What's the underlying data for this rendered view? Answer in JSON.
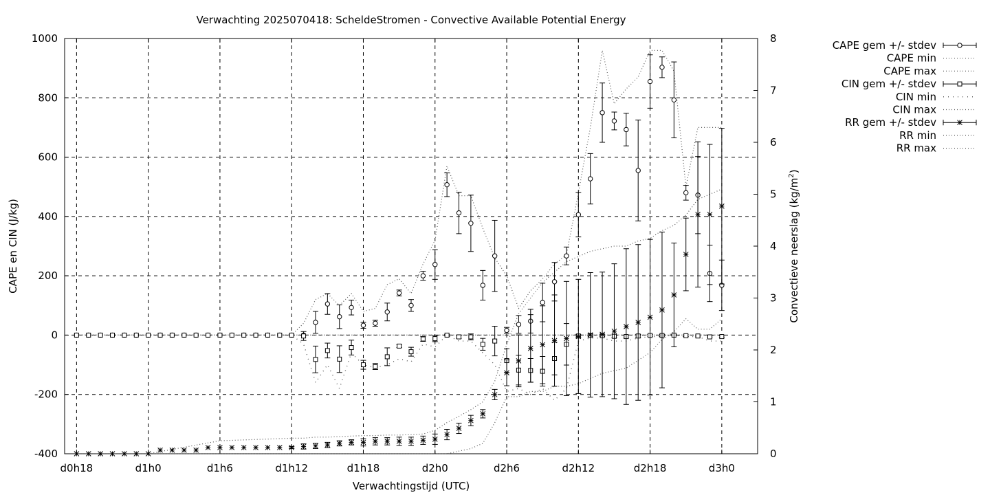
{
  "chart_data": {
    "type": "line",
    "title": "Verwachting 2025070418: ScheldeStromen - Convective Available Potential Energy",
    "xlabel": "Verwachtingstijd (UTC)",
    "ylabel": "CAPE en CIN (J/kg)",
    "y2label": "Convectieve neerslag (kg/m",
    "y2label_sup": "2",
    "y2label_end": ")",
    "x_hours_range": [
      -1,
      57
    ],
    "x_ticks": [
      {
        "hour": 0,
        "label": "d0h18"
      },
      {
        "hour": 6,
        "label": "d1h0"
      },
      {
        "hour": 12,
        "label": "d1h6"
      },
      {
        "hour": 18,
        "label": "d1h12"
      },
      {
        "hour": 24,
        "label": "d1h18"
      },
      {
        "hour": 30,
        "label": "d2h0"
      },
      {
        "hour": 36,
        "label": "d2h6"
      },
      {
        "hour": 42,
        "label": "d2h12"
      },
      {
        "hour": 48,
        "label": "d2h18"
      },
      {
        "hour": 54,
        "label": "d3h0"
      }
    ],
    "ylim": [
      -400,
      1000
    ],
    "y_ticks": [
      -400,
      -200,
      0,
      200,
      400,
      600,
      800,
      1000
    ],
    "y2lim": [
      0,
      8
    ],
    "y2_ticks": [
      0,
      1,
      2,
      3,
      4,
      5,
      6,
      7,
      8
    ],
    "grid": true,
    "legend_placement": "outside right",
    "legend": [
      {
        "label": "CAPE gem +/- stdev",
        "marker": "circle",
        "style": "errorbar"
      },
      {
        "label": "CAPE min",
        "marker": "none",
        "style": "dotted"
      },
      {
        "label": "CAPE max",
        "marker": "none",
        "style": "dotted"
      },
      {
        "label": "CIN gem +/- stdev",
        "marker": "square",
        "style": "errorbar"
      },
      {
        "label": "CIN min",
        "marker": "none",
        "style": "dotted-sparse"
      },
      {
        "label": "CIN max",
        "marker": "none",
        "style": "dotted"
      },
      {
        "label": "RR gem +/- stdev",
        "marker": "star",
        "style": "errorbar"
      },
      {
        "label": "RR min",
        "marker": "none",
        "style": "dotted"
      },
      {
        "label": "RR max",
        "marker": "none",
        "style": "dotted"
      }
    ],
    "series": [
      {
        "name": "CAPE gem +/- stdev",
        "axis": "y",
        "x": [
          0,
          1,
          2,
          3,
          4,
          5,
          6,
          7,
          8,
          9,
          10,
          11,
          12,
          13,
          14,
          15,
          16,
          17,
          18,
          19,
          20,
          21,
          22,
          23,
          24,
          25,
          26,
          27,
          28,
          29,
          30,
          31,
          32,
          33,
          34,
          35,
          36,
          37,
          38,
          39,
          40,
          41,
          42,
          43,
          44,
          45,
          46,
          47,
          48,
          49,
          50,
          51,
          52,
          53,
          54
        ],
        "y": [
          0,
          0,
          0,
          0,
          0,
          0,
          0,
          0,
          0,
          0,
          0,
          0,
          0,
          0,
          0,
          0,
          0,
          0,
          0,
          0,
          43,
          105,
          62,
          93,
          33,
          40,
          78,
          142,
          100,
          200,
          238,
          507,
          412,
          377,
          168,
          267,
          16,
          36,
          47,
          110,
          180,
          267,
          406,
          527,
          750,
          722,
          693,
          555,
          855,
          903,
          793,
          480,
          472,
          208,
          168
        ],
        "err": [
          0,
          0,
          0,
          0,
          0,
          0,
          0,
          0,
          0,
          0,
          0,
          0,
          0,
          0,
          0,
          0,
          0,
          0,
          0,
          0,
          37,
          35,
          40,
          25,
          10,
          10,
          30,
          10,
          20,
          15,
          50,
          40,
          70,
          95,
          50,
          120,
          10,
          30,
          40,
          65,
          65,
          30,
          75,
          85,
          100,
          30,
          55,
          170,
          90,
          35,
          128,
          25,
          130,
          95,
          85
        ]
      },
      {
        "name": "CAPE min",
        "axis": "y",
        "x": [
          0,
          18,
          19,
          20,
          21,
          22,
          23,
          24,
          25,
          26,
          27,
          28,
          29,
          30,
          31,
          32,
          33,
          34,
          35,
          36,
          37,
          38,
          39,
          40,
          41,
          42,
          43,
          44,
          45,
          46,
          47,
          48,
          49,
          50,
          51,
          52,
          53,
          54
        ],
        "y": [
          0,
          0,
          0,
          0,
          0,
          0,
          0,
          0,
          0,
          0,
          0,
          0,
          0,
          0,
          0,
          0,
          0,
          0,
          0,
          0,
          0,
          0,
          0,
          0,
          0,
          0,
          0,
          0,
          0,
          0,
          0,
          0,
          0,
          0,
          0,
          0,
          0,
          0
        ]
      },
      {
        "name": "CAPE max",
        "axis": "y",
        "x": [
          0,
          18,
          19,
          20,
          21,
          22,
          23,
          24,
          25,
          26,
          27,
          28,
          29,
          30,
          31,
          32,
          33,
          34,
          35,
          36,
          37,
          38,
          39,
          40,
          41,
          42,
          43,
          44,
          45,
          46,
          47,
          48,
          49,
          50,
          51,
          52,
          53,
          54
        ],
        "y": [
          0,
          0,
          40,
          120,
          140,
          100,
          140,
          80,
          90,
          170,
          190,
          140,
          240,
          320,
          570,
          470,
          470,
          360,
          260,
          200,
          90,
          150,
          190,
          240,
          270,
          480,
          700,
          960,
          780,
          830,
          870,
          960,
          960,
          890,
          500,
          700,
          700,
          700
        ]
      },
      {
        "name": "CIN gem +/- stdev",
        "axis": "y",
        "x": [
          0,
          1,
          2,
          3,
          4,
          5,
          6,
          7,
          8,
          9,
          10,
          11,
          12,
          13,
          14,
          15,
          16,
          17,
          18,
          19,
          20,
          21,
          22,
          23,
          24,
          25,
          26,
          27,
          28,
          29,
          30,
          31,
          32,
          33,
          34,
          35,
          36,
          37,
          38,
          39,
          40,
          41,
          42,
          43,
          44,
          45,
          46,
          47,
          48,
          49,
          50,
          51,
          52,
          53,
          54
        ],
        "y": [
          0,
          0,
          0,
          0,
          0,
          0,
          0,
          0,
          0,
          0,
          0,
          0,
          0,
          0,
          0,
          0,
          0,
          0,
          0,
          -3,
          -82,
          -52,
          -81,
          -42,
          -100,
          -106,
          -73,
          -37,
          -56,
          -13,
          -12,
          0,
          -6,
          -6,
          -31,
          -20,
          -86,
          -118,
          -119,
          -122,
          -79,
          -31,
          -3,
          -1,
          -2,
          -4,
          -5,
          -3,
          -1,
          -1,
          0,
          -2,
          -3,
          -6,
          -5
        ],
        "err": [
          0,
          0,
          0,
          0,
          0,
          0,
          0,
          0,
          0,
          0,
          0,
          0,
          0,
          0,
          0,
          0,
          0,
          0,
          0,
          15,
          45,
          25,
          45,
          25,
          15,
          10,
          30,
          5,
          15,
          8,
          10,
          2,
          5,
          10,
          20,
          50,
          40,
          50,
          40,
          50,
          55,
          70,
          5,
          5,
          3,
          5,
          5,
          5,
          3,
          3,
          2,
          3,
          3,
          3,
          3
        ]
      },
      {
        "name": "CIN min",
        "axis": "y",
        "x": [
          0,
          18,
          19,
          20,
          21,
          22,
          23,
          24,
          25,
          26,
          27,
          28,
          29,
          30,
          31,
          32,
          33,
          34,
          35,
          36,
          37,
          38,
          39,
          40,
          41,
          42,
          43,
          44,
          45,
          46,
          47,
          48,
          49,
          50,
          51,
          52,
          53,
          54
        ],
        "y": [
          0,
          0,
          -30,
          -160,
          -100,
          -180,
          -60,
          -100,
          -110,
          -100,
          -80,
          -90,
          -30,
          -40,
          0,
          -20,
          -20,
          -60,
          -100,
          -190,
          -180,
          -200,
          -180,
          -220,
          -180,
          -20,
          -10,
          -10,
          -20,
          -20,
          -10,
          -5,
          -5,
          0,
          -5,
          -5,
          -20,
          -20
        ]
      },
      {
        "name": "CIN max",
        "axis": "y",
        "x": [
          0,
          18,
          54
        ],
        "y": [
          0,
          0,
          0
        ]
      },
      {
        "name": "RR gem +/- stdev",
        "axis": "y2",
        "x": [
          0,
          1,
          2,
          3,
          4,
          5,
          6,
          7,
          8,
          9,
          10,
          11,
          12,
          13,
          14,
          15,
          16,
          17,
          18,
          19,
          20,
          21,
          22,
          23,
          24,
          25,
          26,
          27,
          28,
          29,
          30,
          31,
          32,
          33,
          34,
          35,
          36,
          37,
          38,
          39,
          40,
          41,
          42,
          43,
          44,
          45,
          46,
          47,
          48,
          49,
          50,
          51,
          52,
          53,
          54
        ],
        "y": [
          0,
          0,
          0,
          0,
          0,
          0,
          0,
          0.07,
          0.07,
          0.07,
          0.07,
          0.12,
          0.12,
          0.12,
          0.12,
          0.12,
          0.12,
          0.12,
          0.12,
          0.14,
          0.15,
          0.17,
          0.2,
          0.22,
          0.22,
          0.24,
          0.24,
          0.24,
          0.24,
          0.26,
          0.28,
          0.37,
          0.49,
          0.64,
          0.77,
          1.14,
          1.56,
          1.79,
          2.03,
          2.1,
          2.18,
          2.22,
          2.26,
          2.29,
          2.3,
          2.36,
          2.45,
          2.53,
          2.63,
          2.77,
          3.06,
          3.84,
          4.61,
          4.61,
          4.77
        ],
        "err": [
          0,
          0,
          0,
          0,
          0,
          0,
          0,
          0,
          0,
          0,
          0,
          0,
          0,
          0,
          0,
          0,
          0,
          0,
          0.02,
          0.05,
          0.05,
          0.05,
          0.05,
          0.05,
          0.07,
          0.07,
          0.07,
          0.08,
          0.08,
          0.08,
          0.1,
          0.1,
          0.1,
          0.1,
          0.08,
          0.1,
          0.25,
          0.5,
          0.65,
          0.75,
          0.88,
          1.1,
          1.1,
          1.2,
          1.2,
          1.3,
          1.5,
          1.5,
          1.5,
          1.5,
          1.0,
          0.7,
          1.4,
          1.35,
          1.5
        ]
      },
      {
        "name": "RR min",
        "axis": "y2",
        "x": [
          0,
          18,
          19,
          20,
          21,
          22,
          23,
          24,
          25,
          26,
          27,
          28,
          29,
          30,
          31,
          32,
          33,
          34,
          35,
          36,
          37,
          38,
          39,
          40,
          41,
          42,
          43,
          44,
          45,
          46,
          47,
          48,
          49,
          50,
          51,
          52,
          53,
          54
        ],
        "y": [
          0,
          0,
          0,
          0,
          0,
          0,
          0,
          0,
          0,
          0,
          0,
          0,
          0,
          0,
          0,
          0.05,
          0.1,
          0.2,
          0.6,
          1.1,
          1.1,
          1.2,
          1.2,
          1.3,
          1.3,
          1.35,
          1.45,
          1.55,
          1.6,
          1.65,
          1.8,
          1.95,
          2.2,
          2.35,
          2.6,
          2.4,
          2.4,
          2.6
        ]
      },
      {
        "name": "RR max",
        "axis": "y2",
        "x": [
          0,
          6,
          12,
          18,
          19,
          20,
          21,
          22,
          23,
          24,
          25,
          26,
          27,
          28,
          29,
          30,
          31,
          32,
          33,
          34,
          35,
          36,
          37,
          38,
          39,
          40,
          41,
          42,
          43,
          44,
          45,
          46,
          47,
          48,
          49,
          50,
          51,
          52,
          53,
          54
        ],
        "y": [
          0,
          0,
          0.25,
          0.3,
          0.3,
          0.32,
          0.32,
          0.33,
          0.34,
          0.35,
          0.35,
          0.36,
          0.36,
          0.37,
          0.38,
          0.45,
          0.6,
          0.72,
          0.85,
          1.0,
          1.4,
          2.1,
          2.7,
          3.0,
          3.3,
          3.5,
          3.7,
          3.8,
          3.9,
          3.95,
          4.0,
          4.0,
          4.1,
          4.15,
          4.3,
          4.4,
          4.6,
          4.9,
          5.0,
          5.1
        ]
      }
    ]
  }
}
